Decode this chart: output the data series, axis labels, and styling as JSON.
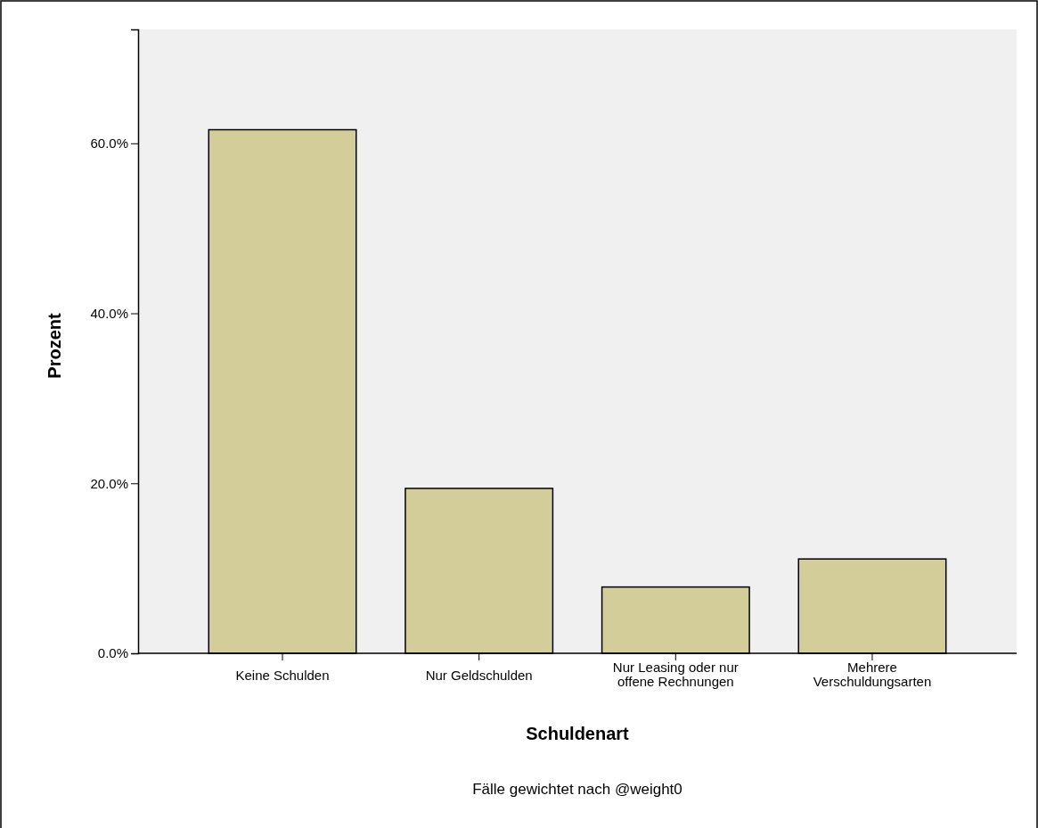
{
  "chart_data": {
    "type": "bar",
    "xlabel": "Schuldenart",
    "ylabel": "Prozent",
    "categories": [
      "Keine Schulden",
      "Nur Geldschulden",
      "Nur Leasing oder nur offene Rechnungen",
      "Mehrere Verschuldungsarten"
    ],
    "values": [
      61.6,
      19.4,
      7.8,
      11.1
    ],
    "color": "#d3ce99",
    "ylim": [
      0,
      73.4
    ],
    "yticks": [
      {
        "value": 0,
        "label": "0.0%"
      },
      {
        "value": 20,
        "label": "20.0%"
      },
      {
        "value": 40,
        "label": "40.0%"
      },
      {
        "value": 60,
        "label": "60.0%"
      }
    ],
    "grid": false,
    "annotations": [
      "Fälle gewichtet nach @weight0"
    ]
  }
}
